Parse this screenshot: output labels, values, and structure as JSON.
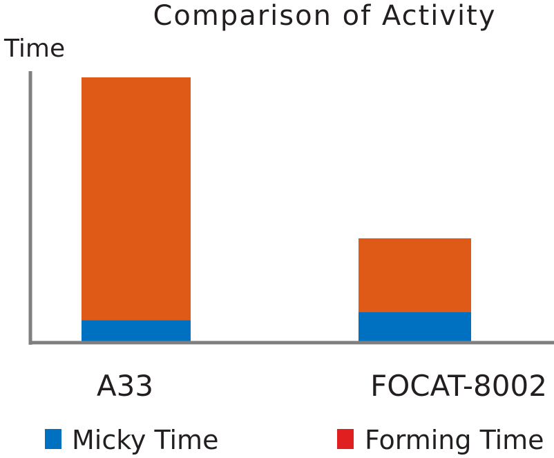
{
  "chart_data": {
    "type": "bar",
    "stacked": true,
    "title": "Comparison of Activity",
    "ylabel": "Time",
    "xlabel": "",
    "categories": [
      "A33",
      "FOCAT-8002"
    ],
    "series": [
      {
        "name": "Micky Time",
        "values": [
          8,
          11
        ]
      },
      {
        "name": "Forming Time",
        "values": [
          92,
          28
        ]
      }
    ],
    "ylim": [
      0,
      100
    ],
    "grid": false,
    "legend": "bottom",
    "colors": {
      "micky_bar": "#0070c0",
      "forming_bar": "#e05a17",
      "micky_legend": "#0070c0",
      "forming_legend": "#e02020",
      "axis": "#7f7f7f",
      "text": "#231f20"
    }
  }
}
